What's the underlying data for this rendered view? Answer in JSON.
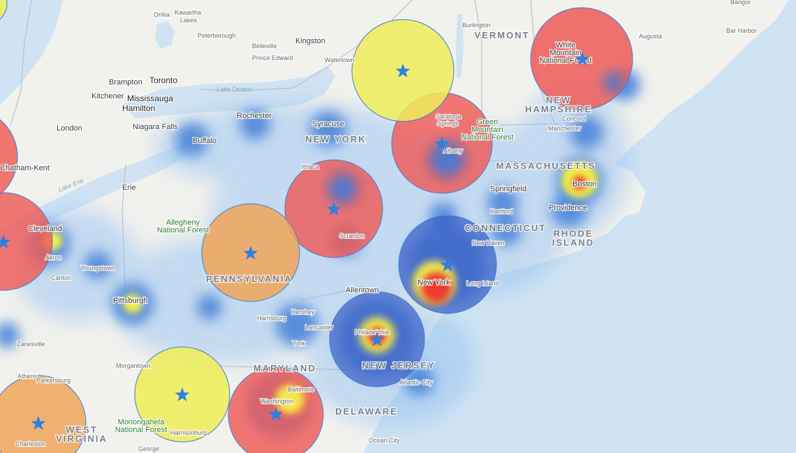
{
  "map": {
    "colors": {
      "land": "#f1f1ee",
      "water": "#cfe3f2",
      "heat_blue": "#3d7dd8",
      "heat_yellow": "#f3f04a",
      "heat_red": "#ee3b32",
      "circle_red": "#ef5a57",
      "circle_yellow": "#eeed5b",
      "circle_orange": "#f0a558",
      "star": "#2f7fe0"
    },
    "states": [
      {
        "name": "VERMONT"
      },
      {
        "name": "NEW YORK"
      },
      {
        "name": "NEW"
      },
      {
        "name": "HAMPSHIRE"
      },
      {
        "name": "MASSACHUSETTS"
      },
      {
        "name": "CONNECTICUT"
      },
      {
        "name": "RHODE"
      },
      {
        "name": "ISLAND"
      },
      {
        "name": "PENNSYLVANIA"
      },
      {
        "name": "NEW JERSEY"
      },
      {
        "name": "MARYLAND"
      },
      {
        "name": "DELAWARE"
      },
      {
        "name": "WEST"
      },
      {
        "name": "VIRGINIA"
      }
    ],
    "cities": [
      {
        "name": "Orillia"
      },
      {
        "name": "Kawartha"
      },
      {
        "name": "Lakes"
      },
      {
        "name": "Peterborough"
      },
      {
        "name": "Belleville"
      },
      {
        "name": "Kingston"
      },
      {
        "name": "Prince Edward"
      },
      {
        "name": "Watertown"
      },
      {
        "name": "Brampton"
      },
      {
        "name": "Toronto"
      },
      {
        "name": "Mississauga"
      },
      {
        "name": "Kitchener"
      },
      {
        "name": "Hamilton"
      },
      {
        "name": "London"
      },
      {
        "name": "Niagara Falls"
      },
      {
        "name": "Chatham-Kent"
      },
      {
        "name": "Buffalo"
      },
      {
        "name": "Rochester"
      },
      {
        "name": "Syracuse"
      },
      {
        "name": "Ithaca"
      },
      {
        "name": "Erie"
      },
      {
        "name": "Cleveland"
      },
      {
        "name": "Akron"
      },
      {
        "name": "Canton"
      },
      {
        "name": "Youngstown"
      },
      {
        "name": "Pittsburgh"
      },
      {
        "name": "Zanesville"
      },
      {
        "name": "Morgantown"
      },
      {
        "name": "Athens"
      },
      {
        "name": "Parkersburg"
      },
      {
        "name": "Charleston"
      },
      {
        "name": "Burlington"
      },
      {
        "name": "Augusta"
      },
      {
        "name": "Bangor"
      },
      {
        "name": "Bar Harbor"
      },
      {
        "name": "Saratoga"
      },
      {
        "name": "Springs"
      },
      {
        "name": "Albany"
      },
      {
        "name": "Concord"
      },
      {
        "name": "Manchester"
      },
      {
        "name": "Boston"
      },
      {
        "name": "Springfield"
      },
      {
        "name": "Hartford"
      },
      {
        "name": "Providence"
      },
      {
        "name": "New Haven"
      },
      {
        "name": "New York"
      },
      {
        "name": "Long Island"
      },
      {
        "name": "Allentown"
      },
      {
        "name": "Harrisburg"
      },
      {
        "name": "Hershey"
      },
      {
        "name": "Lancaster"
      },
      {
        "name": "York"
      },
      {
        "name": "Philadelphia"
      },
      {
        "name": "Atlantic City"
      },
      {
        "name": "Baltimore"
      },
      {
        "name": "Washington"
      },
      {
        "name": "Ocean City"
      },
      {
        "name": "Harrisonburg"
      },
      {
        "name": "George"
      },
      {
        "name": "Scranton"
      }
    ],
    "parks": [
      {
        "line1": "Allegheny",
        "line2": "National Forest"
      },
      {
        "line1": "Green",
        "line2": "Mountain",
        "line3": "National Forest"
      },
      {
        "line1": "White",
        "line2": "Mountain",
        "line3": "National Forest"
      },
      {
        "line1": "Monongahela",
        "line2": "National Forest"
      }
    ],
    "water_labels": [
      {
        "name": "Lake Ontario"
      },
      {
        "name": "Lake Erie"
      }
    ],
    "hotspots": [
      {
        "tier": "high"
      },
      {
        "tier": "high"
      },
      {
        "tier": "high"
      },
      {
        "tier": "high"
      },
      {
        "tier": "high"
      },
      {
        "tier": "high"
      },
      {
        "tier": "high"
      },
      {
        "tier": "medium"
      },
      {
        "tier": "medium"
      },
      {
        "tier": "low"
      },
      {
        "tier": "low"
      },
      {
        "tier": "low"
      }
    ]
  }
}
